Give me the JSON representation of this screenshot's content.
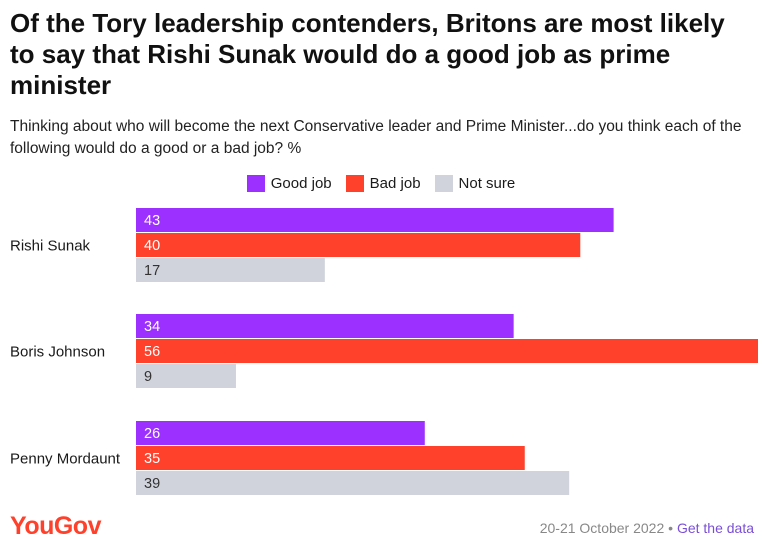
{
  "title": "Of the Tory leadership contenders, Britons are most likely to say that Rishi Sunak would do a good job as prime minister",
  "subtitle": "Thinking about who will become the next Conservative leader and Prime Minister...do you think each of the following would do a good or a bad job? %",
  "legend": [
    {
      "label": "Good job",
      "color": "#9b30ff"
    },
    {
      "label": "Bad job",
      "color": "#ff412c"
    },
    {
      "label": "Not sure",
      "color": "#d0d3dc"
    }
  ],
  "chart_data": {
    "type": "bar",
    "orientation": "horizontal",
    "categories": [
      "Rishi Sunak",
      "Boris Johnson",
      "Penny Mordaunt"
    ],
    "series": [
      {
        "name": "Good job",
        "color": "#9b30ff",
        "values": [
          43,
          34,
          26
        ]
      },
      {
        "name": "Bad job",
        "color": "#ff412c",
        "values": [
          40,
          56,
          35
        ]
      },
      {
        "name": "Not sure",
        "color": "#d0d3dc",
        "values": [
          17,
          9,
          39
        ]
      }
    ],
    "xlim": [
      0,
      56
    ],
    "grid": false,
    "legend_position": "top"
  },
  "footer": {
    "brand": "YouGov",
    "date": "20-21 October 2022",
    "separator": "•",
    "link": "Get the data"
  }
}
